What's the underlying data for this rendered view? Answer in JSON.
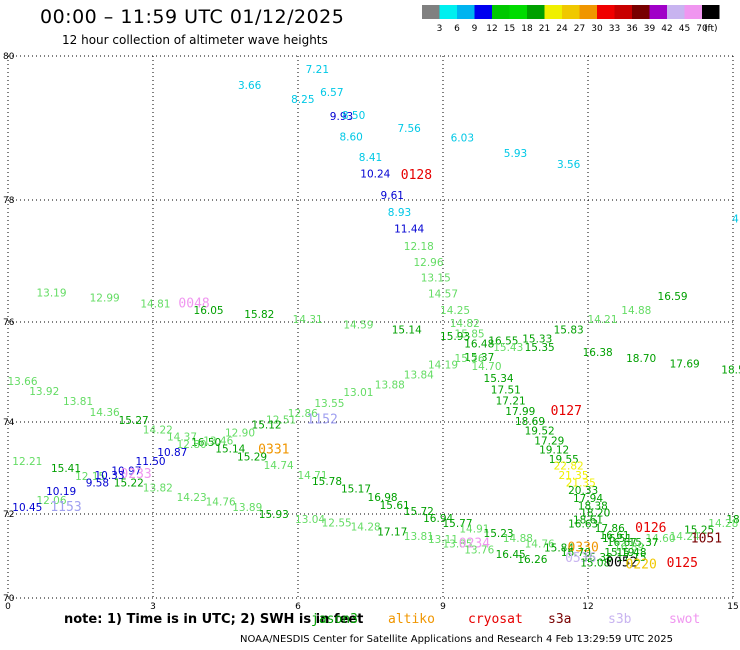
{
  "header": {
    "title": "00:00 – 11:59 UTC 01/12/2025",
    "subtitle": "12 hour collection of altimeter wave heights"
  },
  "scale": {
    "unit": "(ft)",
    "colors": [
      "#808080",
      "#00f0f0",
      "#00b4f0",
      "#0000f0",
      "#00c800",
      "#00dc00",
      "#00a000",
      "#f0f000",
      "#f0c800",
      "#f09600",
      "#f00000",
      "#c80000",
      "#780000",
      "#a000c8",
      "#c8b4f0",
      "#f096f0",
      "#000000"
    ],
    "ticks": [
      "3",
      "6",
      "9",
      "12",
      "15",
      "18",
      "21",
      "24",
      "27",
      "30",
      "33",
      "36",
      "39",
      "42",
      "45",
      "70"
    ]
  },
  "axes": {
    "x_ticks": [
      {
        "label": "0",
        "v": 0
      },
      {
        "label": "3",
        "v": 3
      },
      {
        "label": "6",
        "v": 6
      },
      {
        "label": "9",
        "v": 9
      },
      {
        "label": "12",
        "v": 12
      },
      {
        "label": "15",
        "v": 15
      }
    ],
    "y_ticks": [
      {
        "label": "80",
        "v": 80
      },
      {
        "label": "78",
        "v": 78
      },
      {
        "label": "76",
        "v": 76
      },
      {
        "label": "74",
        "v": 74
      },
      {
        "label": "72",
        "v": 72
      },
      {
        "label": "70",
        "v": 70
      }
    ]
  },
  "observations": [
    {
      "text": "7.21",
      "lon": 6.4,
      "lat": 79.82,
      "color": "#00c8e6"
    },
    {
      "text": "3.66",
      "lon": 5.0,
      "lat": 79.6,
      "color": "#00c8e6"
    },
    {
      "text": "6.57",
      "lon": 6.7,
      "lat": 79.5,
      "color": "#00c8e6"
    },
    {
      "text": "8.25",
      "lon": 6.1,
      "lat": 79.4,
      "color": "#00c8e6"
    },
    {
      "text": "9.93",
      "lon": 6.9,
      "lat": 79.17,
      "color": "#0000d2"
    },
    {
      "text": "8.50",
      "lon": 7.15,
      "lat": 79.18,
      "color": "#00c8e6"
    },
    {
      "text": "7.56",
      "lon": 8.3,
      "lat": 79.0,
      "color": "#00c8e6"
    },
    {
      "text": "8.60",
      "lon": 7.1,
      "lat": 78.88,
      "color": "#00c8e6"
    },
    {
      "text": "6.03",
      "lon": 9.4,
      "lat": 78.87,
      "color": "#00c8e6"
    },
    {
      "text": "5.93",
      "lon": 10.5,
      "lat": 78.65,
      "color": "#00c8e6"
    },
    {
      "text": "8.41",
      "lon": 7.5,
      "lat": 78.6,
      "color": "#00c8e6"
    },
    {
      "text": "3.56",
      "lon": 11.6,
      "lat": 78.5,
      "color": "#00c8e6"
    },
    {
      "text": "10.24",
      "lon": 7.6,
      "lat": 78.37,
      "color": "#0000d2"
    },
    {
      "text": "0128",
      "lon": 8.45,
      "lat": 78.35,
      "color": "#e60000",
      "big": true
    },
    {
      "text": "9.61",
      "lon": 7.95,
      "lat": 78.07,
      "color": "#0000d2"
    },
    {
      "text": "8.93",
      "lon": 8.1,
      "lat": 77.8,
      "color": "#00c8e6"
    },
    {
      "text": "4",
      "lon": 15.05,
      "lat": 77.7,
      "color": "#00c8e6"
    },
    {
      "text": "11.44",
      "lon": 8.3,
      "lat": 77.53,
      "color": "#0000d2"
    },
    {
      "text": "12.18",
      "lon": 8.5,
      "lat": 77.25,
      "color": "#64dc64"
    },
    {
      "text": "12.96",
      "lon": 8.7,
      "lat": 76.98,
      "color": "#64dc64"
    },
    {
      "text": "13.15",
      "lon": 8.85,
      "lat": 76.73,
      "color": "#64dc64"
    },
    {
      "text": "13.19",
      "lon": 0.9,
      "lat": 76.48,
      "color": "#64dc64"
    },
    {
      "text": "12.99",
      "lon": 2.0,
      "lat": 76.4,
      "color": "#64dc64"
    },
    {
      "text": "14.57",
      "lon": 9.0,
      "lat": 76.47,
      "color": "#64dc64"
    },
    {
      "text": "16.59",
      "lon": 13.75,
      "lat": 76.43,
      "color": "#00a000"
    },
    {
      "text": "14.81",
      "lon": 3.05,
      "lat": 76.3,
      "color": "#64dc64"
    },
    {
      "text": "0048",
      "lon": 3.85,
      "lat": 76.3,
      "color": "#f096f0",
      "big": true
    },
    {
      "text": "16.05",
      "lon": 4.15,
      "lat": 76.2,
      "color": "#00a000"
    },
    {
      "text": "14.25",
      "lon": 9.25,
      "lat": 76.2,
      "color": "#64dc64"
    },
    {
      "text": "14.88",
      "lon": 13.0,
      "lat": 76.2,
      "color": "#64dc64"
    },
    {
      "text": "15.82",
      "lon": 5.2,
      "lat": 76.13,
      "color": "#00a000"
    },
    {
      "text": "14.31",
      "lon": 6.2,
      "lat": 76.05,
      "color": "#64dc64"
    },
    {
      "text": "14.21",
      "lon": 12.3,
      "lat": 76.05,
      "color": "#64dc64"
    },
    {
      "text": "14.82",
      "lon": 9.45,
      "lat": 75.98,
      "color": "#64dc64"
    },
    {
      "text": "14.59",
      "lon": 7.25,
      "lat": 75.95,
      "color": "#64dc64"
    },
    {
      "text": "15.14",
      "lon": 8.25,
      "lat": 75.85,
      "color": "#00a000"
    },
    {
      "text": "15.83",
      "lon": 11.6,
      "lat": 75.85,
      "color": "#00a000"
    },
    {
      "text": "15.85",
      "lon": 9.55,
      "lat": 75.77,
      "color": "#64dc64"
    },
    {
      "text": "15.93",
      "lon": 9.25,
      "lat": 75.72,
      "color": "#00a000"
    },
    {
      "text": "15.33",
      "lon": 10.95,
      "lat": 75.67,
      "color": "#00a000"
    },
    {
      "text": "16.55",
      "lon": 10.25,
      "lat": 75.63,
      "color": "#00a000"
    },
    {
      "text": "16.48",
      "lon": 9.75,
      "lat": 75.57,
      "color": "#00a000"
    },
    {
      "text": "15.43",
      "lon": 10.35,
      "lat": 75.5,
      "color": "#64dc64"
    },
    {
      "text": "15.35",
      "lon": 11.0,
      "lat": 75.5,
      "color": "#00a000"
    },
    {
      "text": "16.38",
      "lon": 12.2,
      "lat": 75.4,
      "color": "#00a000"
    },
    {
      "text": "15.37",
      "lon": 9.75,
      "lat": 75.3,
      "color": "#00a000"
    },
    {
      "text": "15.26",
      "lon": 9.55,
      "lat": 75.28,
      "color": "#64dc64"
    },
    {
      "text": "18.70",
      "lon": 13.1,
      "lat": 75.28,
      "color": "#00a000"
    },
    {
      "text": "17.69",
      "lon": 14.0,
      "lat": 75.17,
      "color": "#00a000"
    },
    {
      "text": "14.19",
      "lon": 9.0,
      "lat": 75.15,
      "color": "#64dc64"
    },
    {
      "text": "14.70",
      "lon": 9.9,
      "lat": 75.12,
      "color": "#64dc64"
    },
    {
      "text": "18.5",
      "lon": 15.0,
      "lat": 75.05,
      "color": "#00a000"
    },
    {
      "text": "13.84",
      "lon": 8.5,
      "lat": 74.95,
      "color": "#64dc64"
    },
    {
      "text": "15.34",
      "lon": 10.15,
      "lat": 74.88,
      "color": "#00a000"
    },
    {
      "text": "13.66",
      "lon": 0.3,
      "lat": 74.82,
      "color": "#64dc64"
    },
    {
      "text": "13.88",
      "lon": 7.9,
      "lat": 74.75,
      "color": "#64dc64"
    },
    {
      "text": "17.51",
      "lon": 10.3,
      "lat": 74.65,
      "color": "#00a000"
    },
    {
      "text": "13.92",
      "lon": 0.75,
      "lat": 74.62,
      "color": "#64dc64"
    },
    {
      "text": "13.01",
      "lon": 7.25,
      "lat": 74.6,
      "color": "#64dc64"
    },
    {
      "text": "17.21",
      "lon": 10.4,
      "lat": 74.43,
      "color": "#00a000"
    },
    {
      "text": "13.81",
      "lon": 1.45,
      "lat": 74.42,
      "color": "#64dc64"
    },
    {
      "text": "13.55",
      "lon": 6.65,
      "lat": 74.38,
      "color": "#64dc64"
    },
    {
      "text": "17.99",
      "lon": 10.6,
      "lat": 74.22,
      "color": "#00a000"
    },
    {
      "text": "0127",
      "lon": 11.55,
      "lat": 74.22,
      "color": "#e60000",
      "big": true
    },
    {
      "text": "14.36",
      "lon": 2.0,
      "lat": 74.2,
      "color": "#64dc64"
    },
    {
      "text": "12.86",
      "lon": 6.1,
      "lat": 74.18,
      "color": "#64dc64"
    },
    {
      "text": "12.51",
      "lon": 5.65,
      "lat": 74.05,
      "color": "#64dc64"
    },
    {
      "text": "1152",
      "lon": 6.5,
      "lat": 74.05,
      "color": "#a0a0f0",
      "big": true
    },
    {
      "text": "15.27",
      "lon": 2.6,
      "lat": 74.04,
      "color": "#00a000"
    },
    {
      "text": "18.69",
      "lon": 10.8,
      "lat": 74.02,
      "color": "#00a000"
    },
    {
      "text": "15.12",
      "lon": 5.35,
      "lat": 73.95,
      "color": "#00a000"
    },
    {
      "text": "14.22",
      "lon": 3.1,
      "lat": 73.84,
      "color": "#64dc64"
    },
    {
      "text": "19.52",
      "lon": 11.0,
      "lat": 73.82,
      "color": "#00a000"
    },
    {
      "text": "12.90",
      "lon": 4.8,
      "lat": 73.77,
      "color": "#64dc64"
    },
    {
      "text": "14.37",
      "lon": 3.6,
      "lat": 73.68,
      "color": "#64dc64"
    },
    {
      "text": "13.46",
      "lon": 4.35,
      "lat": 73.6,
      "color": "#64dc64"
    },
    {
      "text": "17.29",
      "lon": 11.2,
      "lat": 73.6,
      "color": "#00a000"
    },
    {
      "text": "16.50",
      "lon": 4.1,
      "lat": 73.57,
      "color": "#00a000"
    },
    {
      "text": "12.80",
      "lon": 3.8,
      "lat": 73.52,
      "color": "#64dc64"
    },
    {
      "text": "19.12",
      "lon": 11.3,
      "lat": 73.4,
      "color": "#00a000"
    },
    {
      "text": "0331",
      "lon": 5.5,
      "lat": 73.4,
      "color": "#f09600",
      "big": true
    },
    {
      "text": "15.14",
      "lon": 4.6,
      "lat": 73.42,
      "color": "#00a000"
    },
    {
      "text": "10.87",
      "lon": 3.4,
      "lat": 73.35,
      "color": "#0000d2"
    },
    {
      "text": "19.55",
      "lon": 11.5,
      "lat": 73.2,
      "color": "#00a000"
    },
    {
      "text": "15.29",
      "lon": 5.05,
      "lat": 73.25,
      "color": "#00a000"
    },
    {
      "text": "11.50",
      "lon": 2.95,
      "lat": 73.15,
      "color": "#0000d2"
    },
    {
      "text": "12.21",
      "lon": 0.4,
      "lat": 73.15,
      "color": "#64dc64"
    },
    {
      "text": "22.82",
      "lon": 11.6,
      "lat": 73.05,
      "color": "#f0f000"
    },
    {
      "text": "14.74",
      "lon": 5.6,
      "lat": 73.06,
      "color": "#64dc64"
    },
    {
      "text": "15.41",
      "lon": 1.2,
      "lat": 73.0,
      "color": "#00a000"
    },
    {
      "text": "10.97",
      "lon": 2.45,
      "lat": 72.95,
      "color": "#0000d2"
    },
    {
      "text": "21.35",
      "lon": 11.7,
      "lat": 72.85,
      "color": "#f0f000"
    },
    {
      "text": "0233",
      "lon": 2.65,
      "lat": 72.87,
      "color": "#f096f0",
      "big": true
    },
    {
      "text": "14.71",
      "lon": 6.3,
      "lat": 72.85,
      "color": "#64dc64"
    },
    {
      "text": "12.15",
      "lon": 1.7,
      "lat": 72.83,
      "color": "#64dc64"
    },
    {
      "text": "10.33",
      "lon": 2.1,
      "lat": 72.85,
      "color": "#0000d2"
    },
    {
      "text": "21.35",
      "lon": 11.85,
      "lat": 72.68,
      "color": "#f0f000"
    },
    {
      "text": "9.58",
      "lon": 1.85,
      "lat": 72.68,
      "color": "#0000d2"
    },
    {
      "text": "15.22",
      "lon": 2.5,
      "lat": 72.68,
      "color": "#00a000"
    },
    {
      "text": "15.78",
      "lon": 6.6,
      "lat": 72.72,
      "color": "#00a000"
    },
    {
      "text": "13.82",
      "lon": 3.1,
      "lat": 72.58,
      "color": "#64dc64"
    },
    {
      "text": "20.33",
      "lon": 11.9,
      "lat": 72.52,
      "color": "#00a000"
    },
    {
      "text": "15.17",
      "lon": 7.2,
      "lat": 72.55,
      "color": "#00a000"
    },
    {
      "text": "10.19",
      "lon": 1.1,
      "lat": 72.5,
      "color": "#0000d2"
    },
    {
      "text": "14.23",
      "lon": 3.8,
      "lat": 72.37,
      "color": "#64dc64"
    },
    {
      "text": "17.94",
      "lon": 12.0,
      "lat": 72.35,
      "color": "#00a000"
    },
    {
      "text": "16.98",
      "lon": 7.75,
      "lat": 72.37,
      "color": "#00a000"
    },
    {
      "text": "12.06",
      "lon": 0.9,
      "lat": 72.3,
      "color": "#64dc64"
    },
    {
      "text": "14.76",
      "lon": 4.4,
      "lat": 72.27,
      "color": "#64dc64"
    },
    {
      "text": "18.38",
      "lon": 12.1,
      "lat": 72.18,
      "color": "#00a000"
    },
    {
      "text": "15.61",
      "lon": 8.0,
      "lat": 72.2,
      "color": "#00a000"
    },
    {
      "text": "10.45",
      "lon": 0.4,
      "lat": 72.15,
      "color": "#0000d2"
    },
    {
      "text": "1153",
      "lon": 1.2,
      "lat": 72.15,
      "color": "#a0a0f0",
      "big": true
    },
    {
      "text": "13.89",
      "lon": 4.95,
      "lat": 72.15,
      "color": "#64dc64"
    },
    {
      "text": "18.20",
      "lon": 12.15,
      "lat": 72.03,
      "color": "#00a000"
    },
    {
      "text": "15.72",
      "lon": 8.5,
      "lat": 72.06,
      "color": "#00a000"
    },
    {
      "text": "15.93",
      "lon": 5.5,
      "lat": 72.0,
      "color": "#00a000"
    },
    {
      "text": "18.61",
      "lon": 12.0,
      "lat": 71.87,
      "color": "#00a000"
    },
    {
      "text": "16.94",
      "lon": 8.9,
      "lat": 71.9,
      "color": "#00a000"
    },
    {
      "text": "13.04",
      "lon": 6.25,
      "lat": 71.88,
      "color": "#64dc64"
    },
    {
      "text": "18",
      "lon": 15.0,
      "lat": 71.88,
      "color": "#00a000"
    },
    {
      "text": "15.77",
      "lon": 9.3,
      "lat": 71.78,
      "color": "#00a000"
    },
    {
      "text": "16.63",
      "lon": 11.9,
      "lat": 71.77,
      "color": "#00a000"
    },
    {
      "text": "12.55",
      "lon": 6.8,
      "lat": 71.8,
      "color": "#64dc64"
    },
    {
      "text": "14.28",
      "lon": 14.8,
      "lat": 71.78,
      "color": "#64dc64"
    },
    {
      "text": "14.28",
      "lon": 7.4,
      "lat": 71.7,
      "color": "#64dc64"
    },
    {
      "text": "17.86",
      "lon": 12.45,
      "lat": 71.67,
      "color": "#00a000"
    },
    {
      "text": "0126",
      "lon": 13.3,
      "lat": 71.67,
      "color": "#e60000",
      "big": true
    },
    {
      "text": "14.91",
      "lon": 9.65,
      "lat": 71.65,
      "color": "#64dc64"
    },
    {
      "text": "15.25",
      "lon": 14.3,
      "lat": 71.63,
      "color": "#00a000"
    },
    {
      "text": "17.17",
      "lon": 7.95,
      "lat": 71.58,
      "color": "#00a000"
    },
    {
      "text": "15.23",
      "lon": 10.15,
      "lat": 71.55,
      "color": "#00a000"
    },
    {
      "text": "16.61",
      "lon": 12.55,
      "lat": 71.5,
      "color": "#00a000"
    },
    {
      "text": "14.24",
      "lon": 14.0,
      "lat": 71.48,
      "color": "#64dc64"
    },
    {
      "text": "13.81",
      "lon": 8.5,
      "lat": 71.48,
      "color": "#64dc64"
    },
    {
      "text": "1051",
      "lon": 14.45,
      "lat": 71.42,
      "color": "#780000",
      "big": true
    },
    {
      "text": "14.88",
      "lon": 10.55,
      "lat": 71.43,
      "color": "#64dc64"
    },
    {
      "text": "16.51",
      "lon": 12.6,
      "lat": 71.43,
      "color": "#00a000"
    },
    {
      "text": "14.60",
      "lon": 13.5,
      "lat": 71.43,
      "color": "#64dc64"
    },
    {
      "text": "13.11",
      "lon": 9.0,
      "lat": 71.4,
      "color": "#64dc64"
    },
    {
      "text": "16.67",
      "lon": 12.7,
      "lat": 71.33,
      "color": "#00a000"
    },
    {
      "text": "15.37",
      "lon": 13.15,
      "lat": 71.33,
      "color": "#00a000"
    },
    {
      "text": "14.76",
      "lon": 11.0,
      "lat": 71.3,
      "color": "#64dc64"
    },
    {
      "text": "13.85",
      "lon": 9.3,
      "lat": 71.3,
      "color": "#64dc64"
    },
    {
      "text": "0234",
      "lon": 9.65,
      "lat": 71.3,
      "color": "#f096f0",
      "big": true
    },
    {
      "text": "16.89",
      "lon": 12.85,
      "lat": 71.23,
      "color": "#64dc64"
    },
    {
      "text": "15.84",
      "lon": 11.4,
      "lat": 71.2,
      "color": "#00a000"
    },
    {
      "text": "0330",
      "lon": 11.9,
      "lat": 71.2,
      "color": "#f09600",
      "big": true
    },
    {
      "text": "13.76",
      "lon": 9.75,
      "lat": 71.15,
      "color": "#64dc64"
    },
    {
      "text": "15.19",
      "lon": 12.65,
      "lat": 71.1,
      "color": "#00a000"
    },
    {
      "text": "16.70",
      "lon": 11.75,
      "lat": 71.1,
      "color": "#00a000"
    },
    {
      "text": "15.48",
      "lon": 12.9,
      "lat": 71.1,
      "color": "#00a000"
    },
    {
      "text": "16.45",
      "lon": 10.4,
      "lat": 71.05,
      "color": "#00a000"
    },
    {
      "text": "15.38",
      "lon": 12.2,
      "lat": 70.98,
      "color": "#00a000"
    },
    {
      "text": "17.15",
      "lon": 12.9,
      "lat": 70.98,
      "color": "#00a000"
    },
    {
      "text": "0536",
      "lon": 11.85,
      "lat": 70.95,
      "color": "#c8b4f0",
      "big": true
    },
    {
      "text": "16.26",
      "lon": 10.85,
      "lat": 70.93,
      "color": "#00a000"
    },
    {
      "text": "15.08",
      "lon": 12.15,
      "lat": 70.85,
      "color": "#00a000"
    },
    {
      "text": "0052",
      "lon": 12.7,
      "lat": 70.85,
      "color": "#000000",
      "big": true
    },
    {
      "text": "0220",
      "lon": 13.1,
      "lat": 70.8,
      "color": "#f0c800",
      "big": true
    },
    {
      "text": "0125",
      "lon": 13.95,
      "lat": 70.83,
      "color": "#e60000",
      "big": true
    }
  ],
  "note": "note: 1) Time is in UTC; 2) SWH is in feet",
  "satellites": [
    {
      "label": "jason3",
      "color": "#00a000",
      "left": 311
    },
    {
      "label": "altiko",
      "color": "#f09600",
      "left": 388
    },
    {
      "label": "cryosat",
      "color": "#e60000",
      "left": 468
    },
    {
      "label": "s3a",
      "color": "#780000",
      "left": 548
    },
    {
      "label": "s3b",
      "color": "#c8b4f0",
      "left": 608
    },
    {
      "label": "swot",
      "color": "#f096f0",
      "left": 669
    }
  ],
  "footer": "NOAA/NESDIS Center for Satellite Applications and Research    4 Feb 13:29:59 UTC 2025"
}
